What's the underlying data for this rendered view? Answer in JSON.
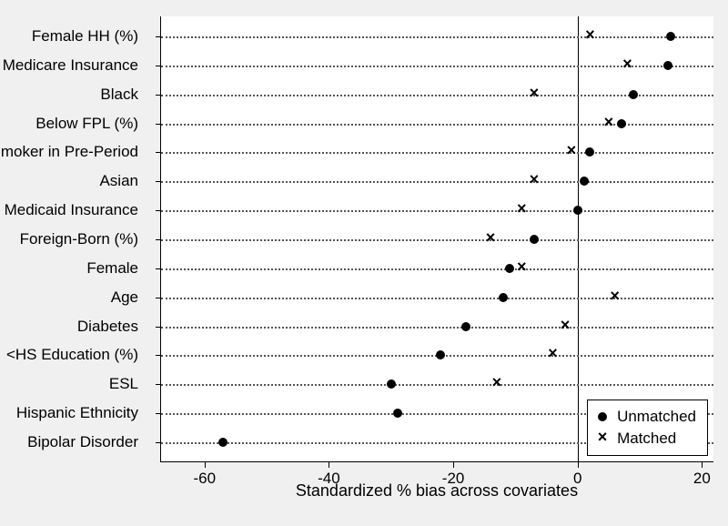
{
  "chart": {
    "type": "dot-plot",
    "background_color": "#eff0ef",
    "plot_background": "#ffffff",
    "axis_color": "#000000",
    "text_color": "#000000",
    "dotted_guide_color": "#555555",
    "label_fontsize": 17,
    "title_fontsize": 18,
    "xlim": [
      -67,
      22
    ],
    "xticks": [
      -60,
      -40,
      -20,
      0,
      20
    ],
    "xtick_labels": [
      "-60",
      "-40",
      "-20",
      "0",
      "20"
    ],
    "xtitle": "Standardized % bias across covariates",
    "zero_line_x": 0,
    "categories": [
      "Female HH (%)",
      "Medicare Insurance",
      "Black",
      "Below FPL (%)",
      "Smoker in Pre-Period",
      "Asian",
      "Medicaid Insurance",
      "Foreign-Born (%)",
      "Female",
      "Age",
      "Diabetes",
      "<HS Education (%)",
      "ESL",
      "Hispanic Ethnicity",
      "Bipolar Disorder"
    ],
    "series": [
      {
        "name": "Unmatched",
        "marker": "dot",
        "marker_color": "#000000",
        "marker_size": 10,
        "values": [
          15,
          14.5,
          9,
          7,
          2,
          1,
          0,
          -7,
          -11,
          -12,
          -18,
          -22,
          -30,
          -29,
          -57
        ]
      },
      {
        "name": "Matched",
        "marker": "cross",
        "marker_color": "#000000",
        "marker_size": 14,
        "values": [
          2,
          8,
          -7,
          5,
          -1,
          -7,
          -9,
          -14,
          -9,
          6,
          -2,
          -4,
          -13,
          null,
          null
        ]
      }
    ],
    "legend": {
      "position": "bottom-right",
      "items": [
        "Unmatched",
        "Matched"
      ]
    }
  }
}
